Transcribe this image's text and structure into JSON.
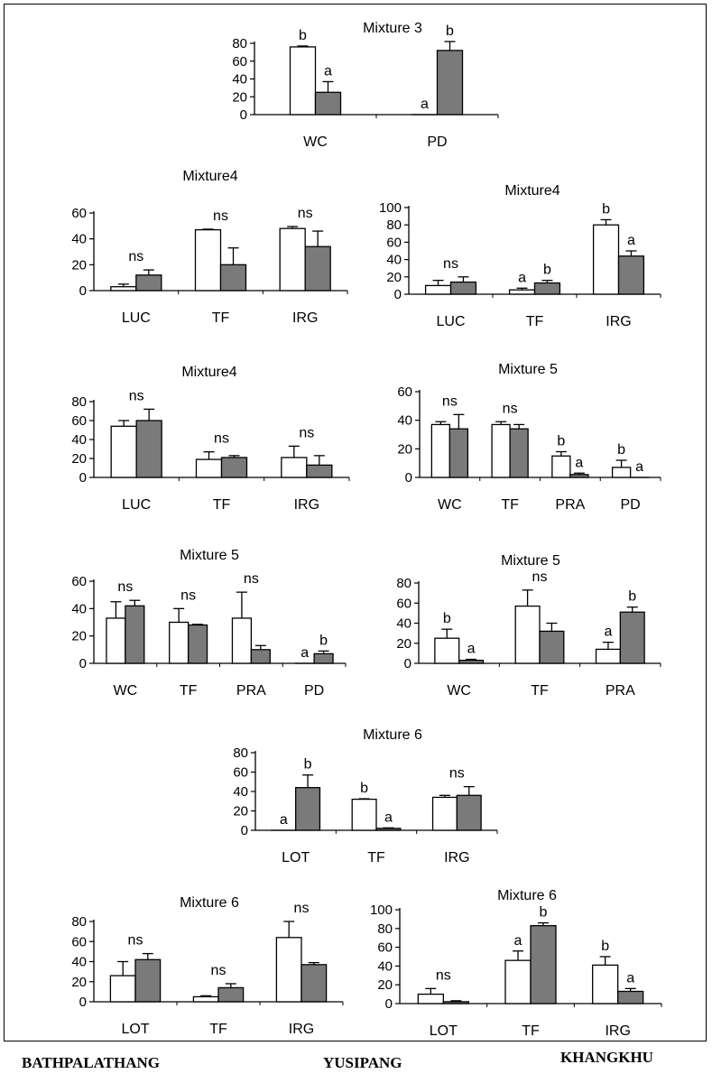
{
  "colors": {
    "open_bar": "#ffffff",
    "filled_bar": "#7a7a7a",
    "stroke": "#000000"
  },
  "site_labels": [
    "BATHPALATHANG",
    "YUSIPANG",
    "KHANGKHU"
  ],
  "chart_data": [
    {
      "type": "bar",
      "title": "Mixture 3",
      "ylim": [
        0,
        80
      ],
      "yticks": [
        "0",
        "20",
        "40",
        "60",
        "80"
      ],
      "categories": [
        "WC",
        "PD"
      ],
      "series": [
        {
          "values": [
            76,
            0
          ],
          "errors": [
            1,
            0
          ],
          "fill": "open"
        },
        {
          "values": [
            25,
            72
          ],
          "errors": [
            12,
            10
          ],
          "fill": "filled"
        }
      ],
      "annotations": [
        {
          "i": 0,
          "s": 0,
          "text": "b"
        },
        {
          "i": 0,
          "s": 1,
          "text": "a"
        },
        {
          "i": 1,
          "s": 0,
          "text": "a"
        },
        {
          "i": 1,
          "s": 1,
          "text": "b"
        }
      ]
    },
    {
      "type": "bar",
      "title": "Mixture4",
      "ylim": [
        0,
        60
      ],
      "yticks": [
        "0",
        "20",
        "40",
        "60"
      ],
      "categories": [
        "LUC",
        "TF",
        "IRG"
      ],
      "series": [
        {
          "values": [
            3,
            47,
            48
          ],
          "errors": [
            2,
            0.5,
            1.5
          ],
          "fill": "open"
        },
        {
          "values": [
            12,
            20,
            34
          ],
          "errors": [
            4,
            13,
            12
          ],
          "fill": "filled"
        }
      ],
      "annotations": [
        {
          "i": 0,
          "text": "ns"
        },
        {
          "i": 1,
          "text": "ns"
        },
        {
          "i": 2,
          "text": "ns"
        }
      ]
    },
    {
      "type": "bar",
      "title": "Mixture4",
      "ylim": [
        0,
        100
      ],
      "yticks": [
        "0",
        "20",
        "40",
        "60",
        "80",
        "100"
      ],
      "categories": [
        "LUC",
        "TF",
        "IRG"
      ],
      "series": [
        {
          "values": [
            10,
            5,
            80
          ],
          "errors": [
            6,
            2,
            6
          ],
          "fill": "open"
        },
        {
          "values": [
            14,
            13,
            44
          ],
          "errors": [
            6,
            3,
            6
          ],
          "fill": "filled"
        }
      ],
      "annotations": [
        {
          "i": 0,
          "text": "ns"
        },
        {
          "i": 1,
          "s": 0,
          "text": "a"
        },
        {
          "i": 1,
          "s": 1,
          "text": "b"
        },
        {
          "i": 2,
          "s": 0,
          "text": "b"
        },
        {
          "i": 2,
          "s": 1,
          "text": "a"
        }
      ]
    },
    {
      "type": "bar",
      "title": "Mixture4",
      "ylim": [
        0,
        80
      ],
      "yticks": [
        "0",
        "20",
        "40",
        "60",
        "80"
      ],
      "categories": [
        "LUC",
        "TF",
        "IRG"
      ],
      "series": [
        {
          "values": [
            54,
            19,
            21
          ],
          "errors": [
            6,
            8,
            12
          ],
          "fill": "open"
        },
        {
          "values": [
            60,
            21,
            13
          ],
          "errors": [
            12,
            2,
            10
          ],
          "fill": "filled"
        }
      ],
      "annotations": [
        {
          "i": 0,
          "text": "ns"
        },
        {
          "i": 1,
          "text": "ns"
        },
        {
          "i": 2,
          "text": "ns"
        }
      ]
    },
    {
      "type": "bar",
      "title": "Mixture 5",
      "ylim": [
        0,
        60
      ],
      "yticks": [
        "0",
        "20",
        "40",
        "60"
      ],
      "categories": [
        "WC",
        "TF",
        "PRA",
        "PD"
      ],
      "series": [
        {
          "values": [
            37,
            37,
            15,
            7
          ],
          "errors": [
            2,
            2,
            3,
            5
          ],
          "fill": "open"
        },
        {
          "values": [
            34,
            34,
            2,
            0
          ],
          "errors": [
            10,
            3,
            1,
            0
          ],
          "fill": "filled"
        }
      ],
      "annotations": [
        {
          "i": 0,
          "text": "ns"
        },
        {
          "i": 1,
          "text": "ns"
        },
        {
          "i": 2,
          "s": 0,
          "text": "b"
        },
        {
          "i": 2,
          "s": 1,
          "text": "a"
        },
        {
          "i": 3,
          "s": 0,
          "text": "b"
        },
        {
          "i": 3,
          "s": 1,
          "text": "a"
        }
      ]
    },
    {
      "type": "bar",
      "title": "Mixture 5",
      "ylim": [
        0,
        60
      ],
      "yticks": [
        "0",
        "20",
        "40",
        "60"
      ],
      "categories": [
        "WC",
        "TF",
        "PRA",
        "PD"
      ],
      "series": [
        {
          "values": [
            33,
            30,
            33,
            0
          ],
          "errors": [
            12,
            10,
            19,
            0
          ],
          "fill": "open"
        },
        {
          "values": [
            42,
            28,
            10,
            7
          ],
          "errors": [
            4,
            0.5,
            3,
            2
          ],
          "fill": "filled"
        }
      ],
      "annotations": [
        {
          "i": 0,
          "text": "ns"
        },
        {
          "i": 1,
          "text": "ns"
        },
        {
          "i": 2,
          "text": "ns"
        },
        {
          "i": 3,
          "s": 0,
          "text": "a"
        },
        {
          "i": 3,
          "s": 1,
          "text": "b"
        }
      ]
    },
    {
      "type": "bar",
      "title": "Mixture 5",
      "ylim": [
        0,
        80
      ],
      "yticks": [
        "0",
        "20",
        "40",
        "60",
        "80"
      ],
      "categories": [
        "WC",
        "TF",
        "PRA"
      ],
      "series": [
        {
          "values": [
            25,
            57,
            14
          ],
          "errors": [
            9,
            16,
            7
          ],
          "fill": "open"
        },
        {
          "values": [
            3,
            32,
            51
          ],
          "errors": [
            1,
            8,
            5
          ],
          "fill": "filled"
        }
      ],
      "annotations": [
        {
          "i": 0,
          "s": 0,
          "text": "b"
        },
        {
          "i": 0,
          "s": 1,
          "text": "a"
        },
        {
          "i": 1,
          "text": "ns"
        },
        {
          "i": 2,
          "s": 0,
          "text": "a"
        },
        {
          "i": 2,
          "s": 1,
          "text": "b"
        }
      ]
    },
    {
      "type": "bar",
      "title": "Mixture  6",
      "ylim": [
        0,
        80
      ],
      "yticks": [
        "0",
        "20",
        "40",
        "60",
        "80"
      ],
      "categories": [
        "LOT",
        "TF",
        "IRG"
      ],
      "series": [
        {
          "values": [
            0,
            32,
            34
          ],
          "errors": [
            0,
            0.5,
            2
          ],
          "fill": "open"
        },
        {
          "values": [
            44,
            2,
            36
          ],
          "errors": [
            13,
            0.5,
            9
          ],
          "fill": "filled"
        }
      ],
      "annotations": [
        {
          "i": 0,
          "s": 0,
          "text": "a"
        },
        {
          "i": 0,
          "s": 1,
          "text": "b"
        },
        {
          "i": 1,
          "s": 0,
          "text": "b"
        },
        {
          "i": 1,
          "s": 1,
          "text": "a"
        },
        {
          "i": 2,
          "text": "ns"
        }
      ]
    },
    {
      "type": "bar",
      "title": "Mixture  6",
      "ylim": [
        0,
        80
      ],
      "yticks": [
        "0",
        "20",
        "40",
        "60",
        "80"
      ],
      "categories": [
        "LOT",
        "TF",
        "IRG"
      ],
      "series": [
        {
          "values": [
            26,
            5,
            64
          ],
          "errors": [
            14,
            1,
            16
          ],
          "fill": "open"
        },
        {
          "values": [
            42,
            14,
            37
          ],
          "errors": [
            6,
            4,
            2
          ],
          "fill": "filled"
        }
      ],
      "annotations": [
        {
          "i": 0,
          "text": "ns"
        },
        {
          "i": 1,
          "text": "ns"
        },
        {
          "i": 2,
          "text": "ns"
        }
      ]
    },
    {
      "type": "bar",
      "title": "Mixture  6",
      "ylim": [
        0,
        100
      ],
      "yticks": [
        "0",
        "20",
        "40",
        "60",
        "80",
        "100"
      ],
      "categories": [
        "LOT",
        "TF",
        "IRG"
      ],
      "series": [
        {
          "values": [
            10,
            46,
            41
          ],
          "errors": [
            6,
            10,
            9
          ],
          "fill": "open"
        },
        {
          "values": [
            2,
            83,
            13
          ],
          "errors": [
            1,
            3,
            3
          ],
          "fill": "filled"
        }
      ],
      "annotations": [
        {
          "i": 0,
          "text": "ns"
        },
        {
          "i": 1,
          "s": 0,
          "text": "a"
        },
        {
          "i": 1,
          "s": 1,
          "text": "b"
        },
        {
          "i": 2,
          "s": 0,
          "text": "b"
        },
        {
          "i": 2,
          "s": 1,
          "text": "a"
        }
      ]
    }
  ]
}
